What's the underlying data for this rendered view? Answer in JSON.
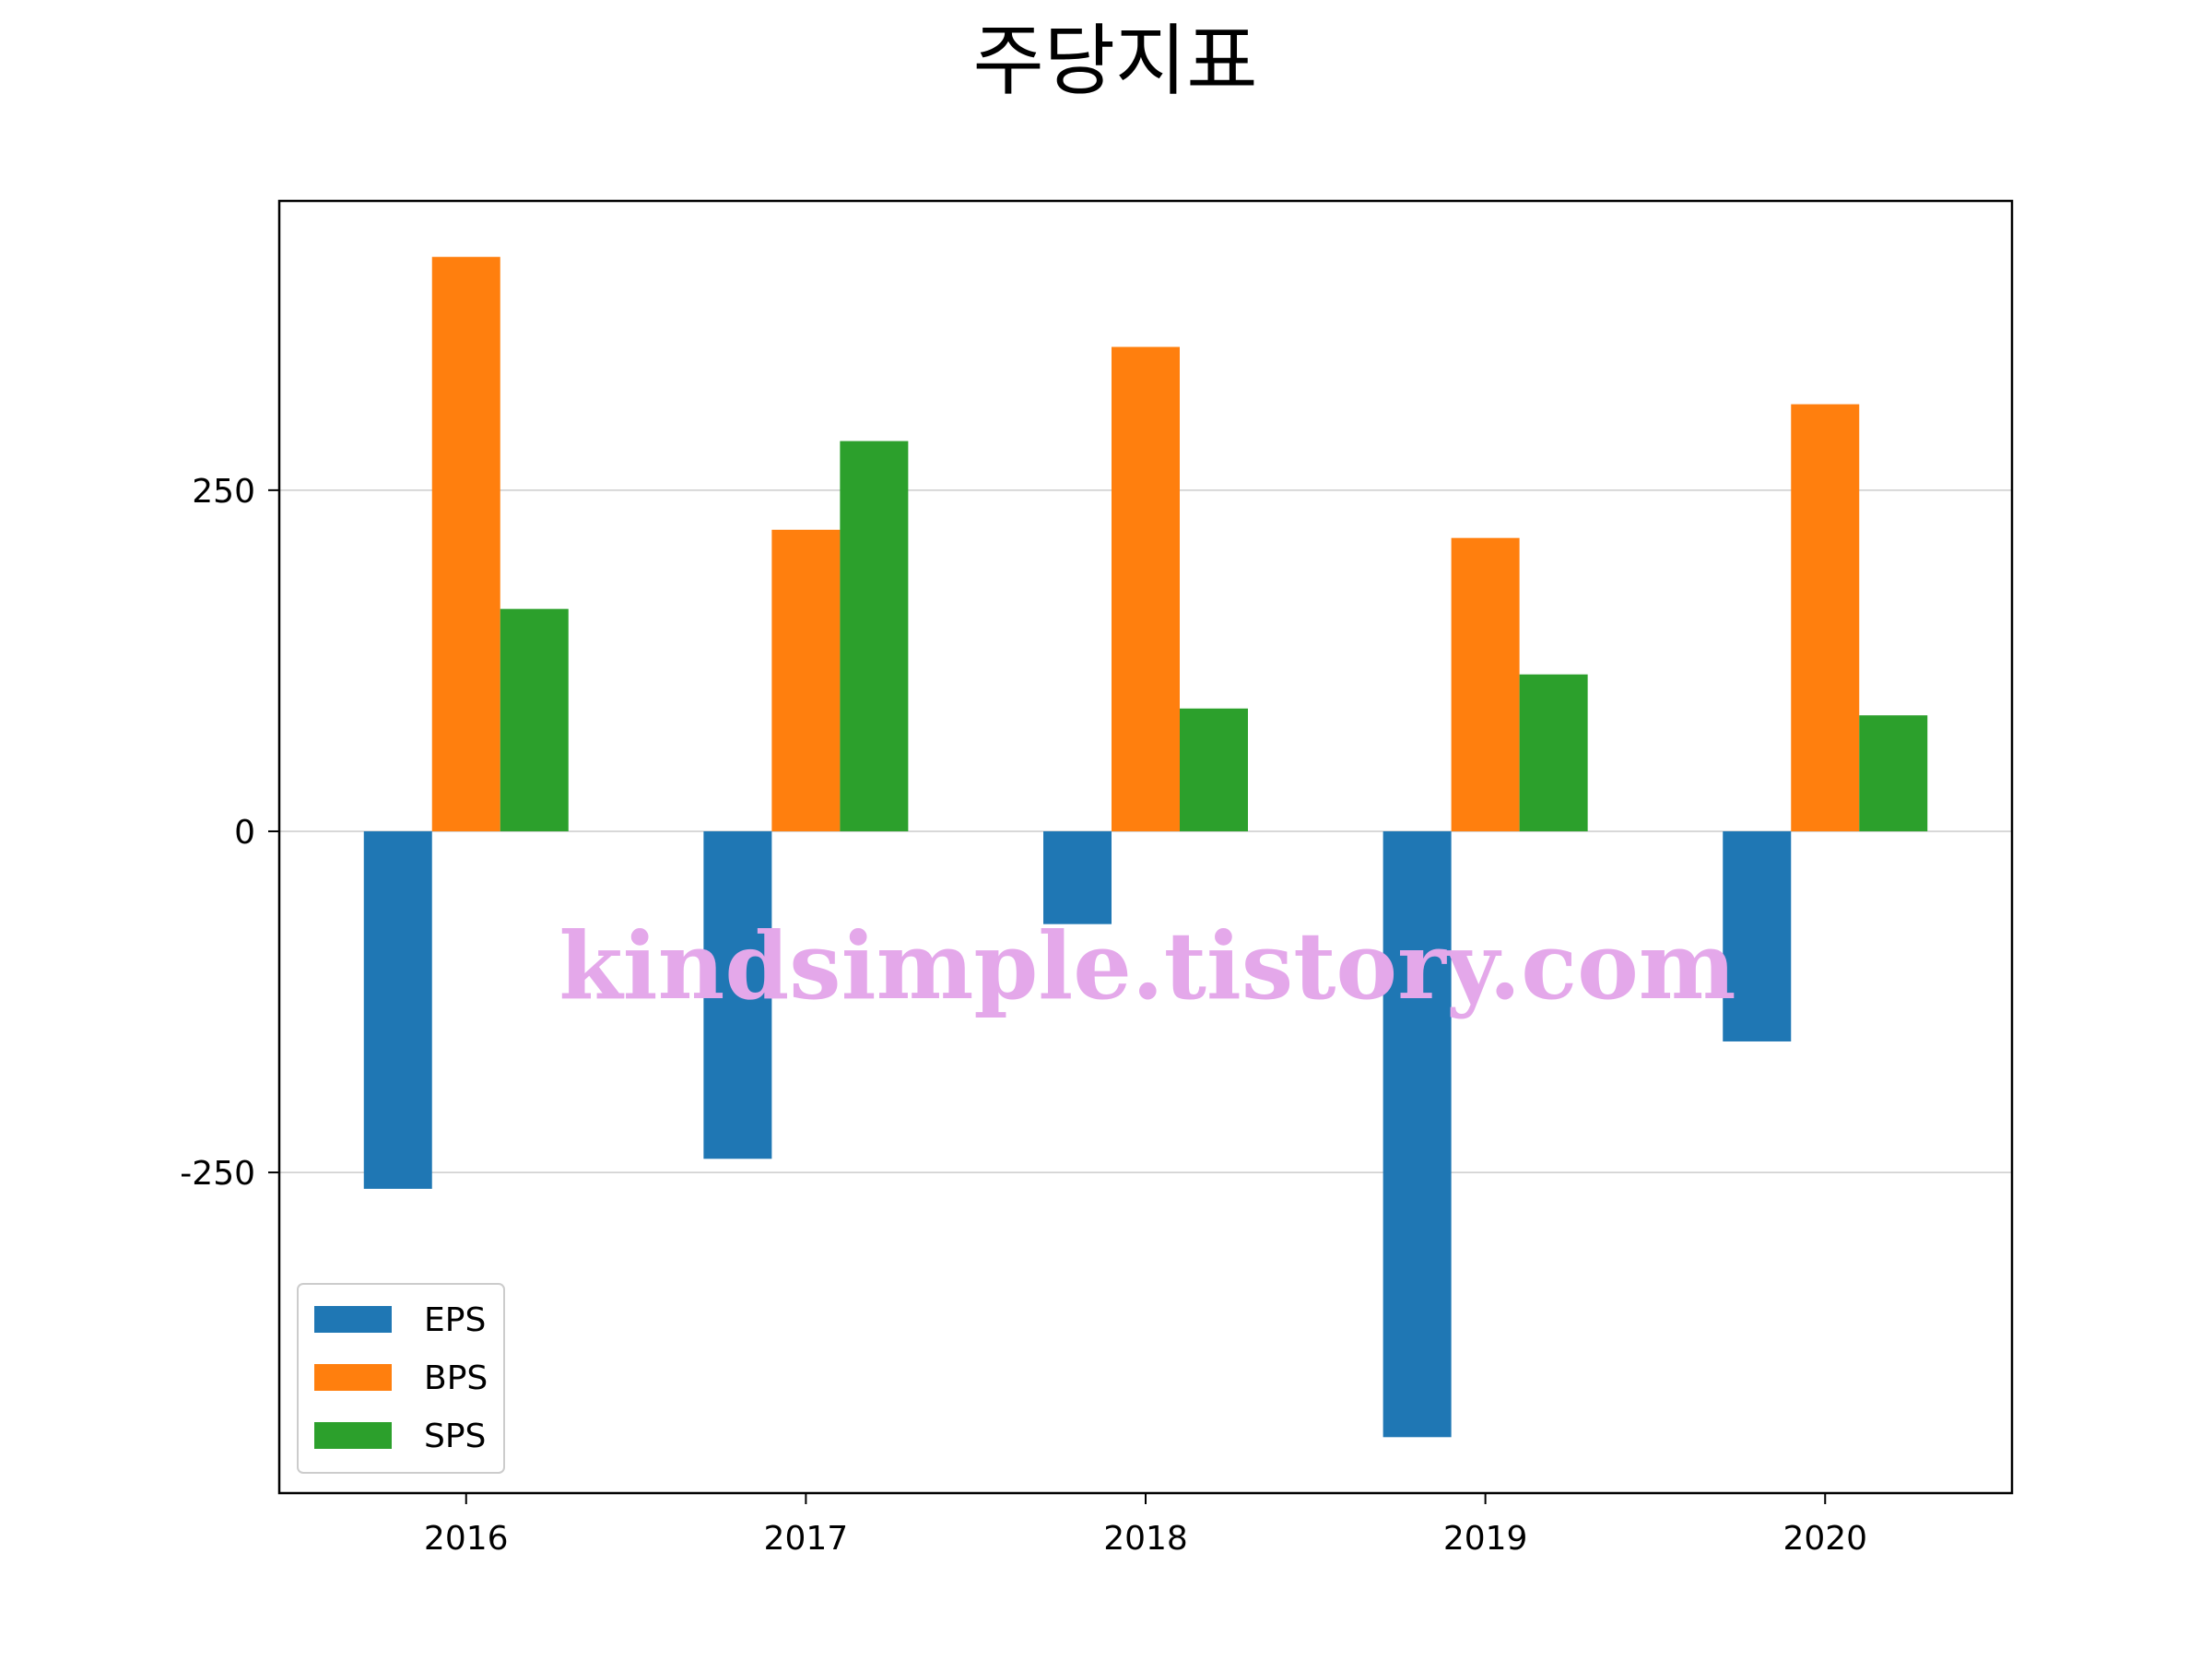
{
  "chart_data": {
    "type": "bar",
    "title": "주당지표",
    "xlabel": "",
    "ylabel": "",
    "categories": [
      "2016",
      "2017",
      "2018",
      "2019",
      "2020"
    ],
    "series": [
      {
        "name": "EPS",
        "values": [
          -262,
          -240,
          -68,
          -444,
          -154
        ],
        "color": "#1f77b4"
      },
      {
        "name": "BPS",
        "values": [
          421,
          221,
          355,
          215,
          313
        ],
        "color": "#ff7f0e"
      },
      {
        "name": "SPS",
        "values": [
          163,
          286,
          90,
          115,
          85
        ],
        "color": "#2ca02c"
      }
    ],
    "yticks": [
      250,
      0,
      -250
    ],
    "ytick_labels": [
      "250",
      "0",
      "-250"
    ],
    "ylim": [
      -485,
      462
    ],
    "grid": "y",
    "legend_position": "lower-left"
  },
  "watermark": "kindsimple.tistory.com"
}
